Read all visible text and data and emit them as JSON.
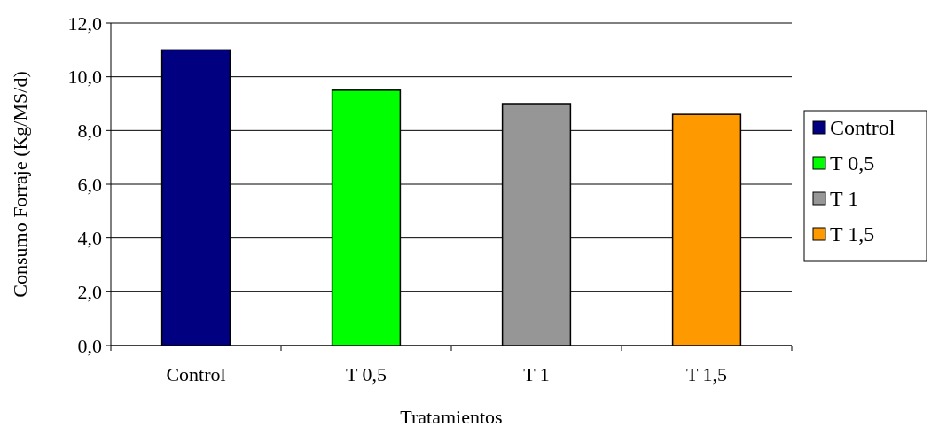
{
  "chart_data": {
    "type": "bar",
    "xlabel": "Tratamientos",
    "ylabel": "Consumo Forraje (Kg/MS/d)",
    "categories": [
      "Control",
      "T 0,5",
      "T 1",
      "T 1,5"
    ],
    "series": [
      {
        "name": "Control",
        "color": "#000080",
        "values": [
          11.0,
          null,
          null,
          null
        ]
      },
      {
        "name": "T 0,5",
        "color": "#00ff00",
        "values": [
          null,
          9.5,
          null,
          null
        ]
      },
      {
        "name": "T 1",
        "color": "#969696",
        "values": [
          null,
          null,
          9.0,
          null
        ]
      },
      {
        "name": "T 1,5",
        "color": "#ff9900",
        "values": [
          null,
          null,
          null,
          8.6
        ]
      }
    ],
    "ylim": [
      0,
      12
    ],
    "yticks": [
      {
        "value": 0,
        "label": "0,0"
      },
      {
        "value": 2,
        "label": "2,0"
      },
      {
        "value": 4,
        "label": "4,0"
      },
      {
        "value": 6,
        "label": "6,0"
      },
      {
        "value": 8,
        "label": "8,0"
      },
      {
        "value": 10,
        "label": "10,0"
      },
      {
        "value": 12,
        "label": "12,0"
      }
    ],
    "grid": "y",
    "legend": "right"
  }
}
